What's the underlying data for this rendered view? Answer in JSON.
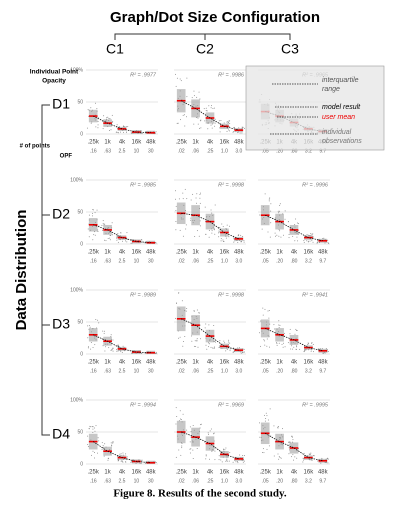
{
  "header": {
    "title": "Graph/Dot Size Configuration",
    "columns": [
      "C1",
      "C2",
      "C3"
    ],
    "opacity_label": [
      "Individual Point",
      "Opacity"
    ]
  },
  "row_title": "Data Distribution",
  "x_row_labels": {
    "points": "# of points",
    "opf": "OPF"
  },
  "axis": {
    "ylim": [
      0,
      100
    ],
    "yticks": [
      0,
      50,
      {
        "value": 100,
        "label": "100%"
      }
    ],
    "categories": [
      ".25k",
      "1k",
      "4k",
      "16k",
      "48k"
    ]
  },
  "opf": [
    [
      ".16",
      ".63",
      "2.5",
      "10",
      "30"
    ],
    [
      ".02",
      ".06",
      ".25",
      "1.0",
      "3.0"
    ],
    [
      ".05",
      ".20",
      ".80",
      "3.2",
      "9.7"
    ]
  ],
  "legend": {
    "iqr": [
      "interquartile",
      "range"
    ],
    "model": "model result",
    "mean": "user mean",
    "obs": [
      "individual",
      "observations"
    ]
  },
  "rows": [
    {
      "label": "D1",
      "panels": [
        {
          "r2": "R² = .9977",
          "means": [
            28,
            17,
            8,
            3,
            2
          ]
        },
        {
          "r2": "R² = .9986",
          "means": [
            52,
            40,
            25,
            12,
            6
          ]
        },
        {
          "r2": "R² = .9965",
          "means": [
            35,
            28,
            18,
            8,
            4
          ]
        }
      ]
    },
    {
      "label": "D2",
      "panels": [
        {
          "r2": "R² = .9985",
          "means": [
            30,
            22,
            10,
            4,
            2
          ]
        },
        {
          "r2": "R² = .9998",
          "means": [
            48,
            45,
            35,
            18,
            8
          ]
        },
        {
          "r2": "R² = .9996",
          "means": [
            45,
            35,
            22,
            10,
            5
          ]
        }
      ]
    },
    {
      "label": "D3",
      "panels": [
        {
          "r2": "R² = .9989",
          "means": [
            30,
            20,
            8,
            3,
            2
          ]
        },
        {
          "r2": "R² = .9998",
          "means": [
            55,
            45,
            28,
            12,
            6
          ]
        },
        {
          "r2": "R² = .9941",
          "means": [
            40,
            30,
            22,
            10,
            5
          ]
        }
      ]
    },
    {
      "label": "D4",
      "panels": [
        {
          "r2": "R² = .9994",
          "means": [
            35,
            20,
            10,
            4,
            2
          ]
        },
        {
          "r2": "R² = .9969",
          "means": [
            50,
            42,
            32,
            15,
            8
          ]
        },
        {
          "r2": "R² = .9995",
          "means": [
            48,
            35,
            25,
            10,
            5
          ]
        }
      ]
    }
  ],
  "caption": "Figure 8. Results of the second study."
}
